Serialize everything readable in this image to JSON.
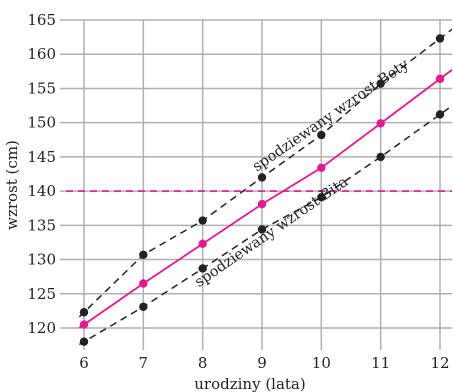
{
  "chart_data": {
    "type": "line",
    "xlabel": "urodziny (lata)",
    "ylabel": "wzrost (cm)",
    "xlim": [
      6,
      12
    ],
    "ylim": [
      118,
      165
    ],
    "x_ticks": [
      6,
      7,
      8,
      9,
      10,
      11,
      12
    ],
    "y_ticks": [
      120,
      125,
      130,
      135,
      140,
      145,
      150,
      155,
      160,
      165
    ],
    "grid": true,
    "colors": {
      "series": "#e5188f",
      "bounds": "#222222",
      "grid": "#b0b0b0",
      "reference": "#e5188f"
    },
    "series": [
      {
        "style": "solid-magenta",
        "x": [
          6,
          7,
          8,
          9,
          10,
          11,
          12
        ],
        "values": [
          120.5,
          126.5,
          132.3,
          138.1,
          143.4,
          149.9,
          156.4
        ]
      },
      {
        "style": "dashed-black-upper",
        "x": [
          6,
          7,
          8,
          9,
          10,
          11,
          12
        ],
        "values": [
          122.3,
          130.7,
          135.7,
          142.0,
          148.2,
          155.7,
          162.3
        ]
      },
      {
        "style": "dashed-black-lower",
        "x": [
          6,
          7,
          8,
          9,
          10,
          11,
          12
        ],
        "values": [
          118.0,
          123.1,
          128.7,
          134.4,
          139.1,
          145.0,
          151.2
        ]
      }
    ],
    "reference_line": {
      "y": 140,
      "style": "dashed-magenta"
    },
    "annotations": [
      {
        "text": "spodziewany wzrost Bety",
        "x": 10.2,
        "y": 150.5
      },
      {
        "text": "spodziewany wzrost Bita",
        "x": 9.2,
        "y": 133.5
      }
    ]
  }
}
